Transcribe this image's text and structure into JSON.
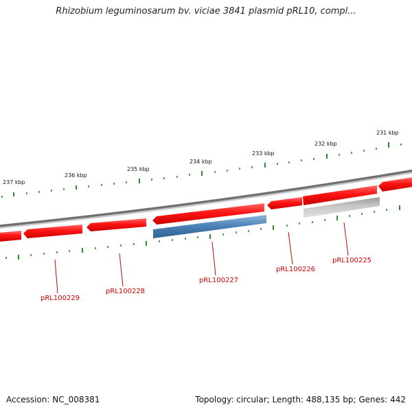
{
  "title": "Rhizobium leguminosarum bv. viciae 3841 plasmid pRL10, compl...",
  "footer": {
    "accession": "Accession: NC_008381",
    "summary": "Topology: circular; Length: 488,135 bp; Genes: 442"
  },
  "colors": {
    "backbone": "#808080",
    "gene_forward": "#ee1111",
    "gene_highlight": "#4a7fb0",
    "gene_gray": "#bbbbbb",
    "tick": "#2e8b2e",
    "label": "#cc0000"
  },
  "scale_labels": [
    "231 kbp",
    "232 kbp",
    "233 kbp",
    "234 kbp",
    "235 kbp",
    "236 kbp",
    "237 kbp"
  ],
  "gene_labels": [
    "pRL100225",
    "pRL100226",
    "pRL100227",
    "pRL100228",
    "pRL100229"
  ]
}
